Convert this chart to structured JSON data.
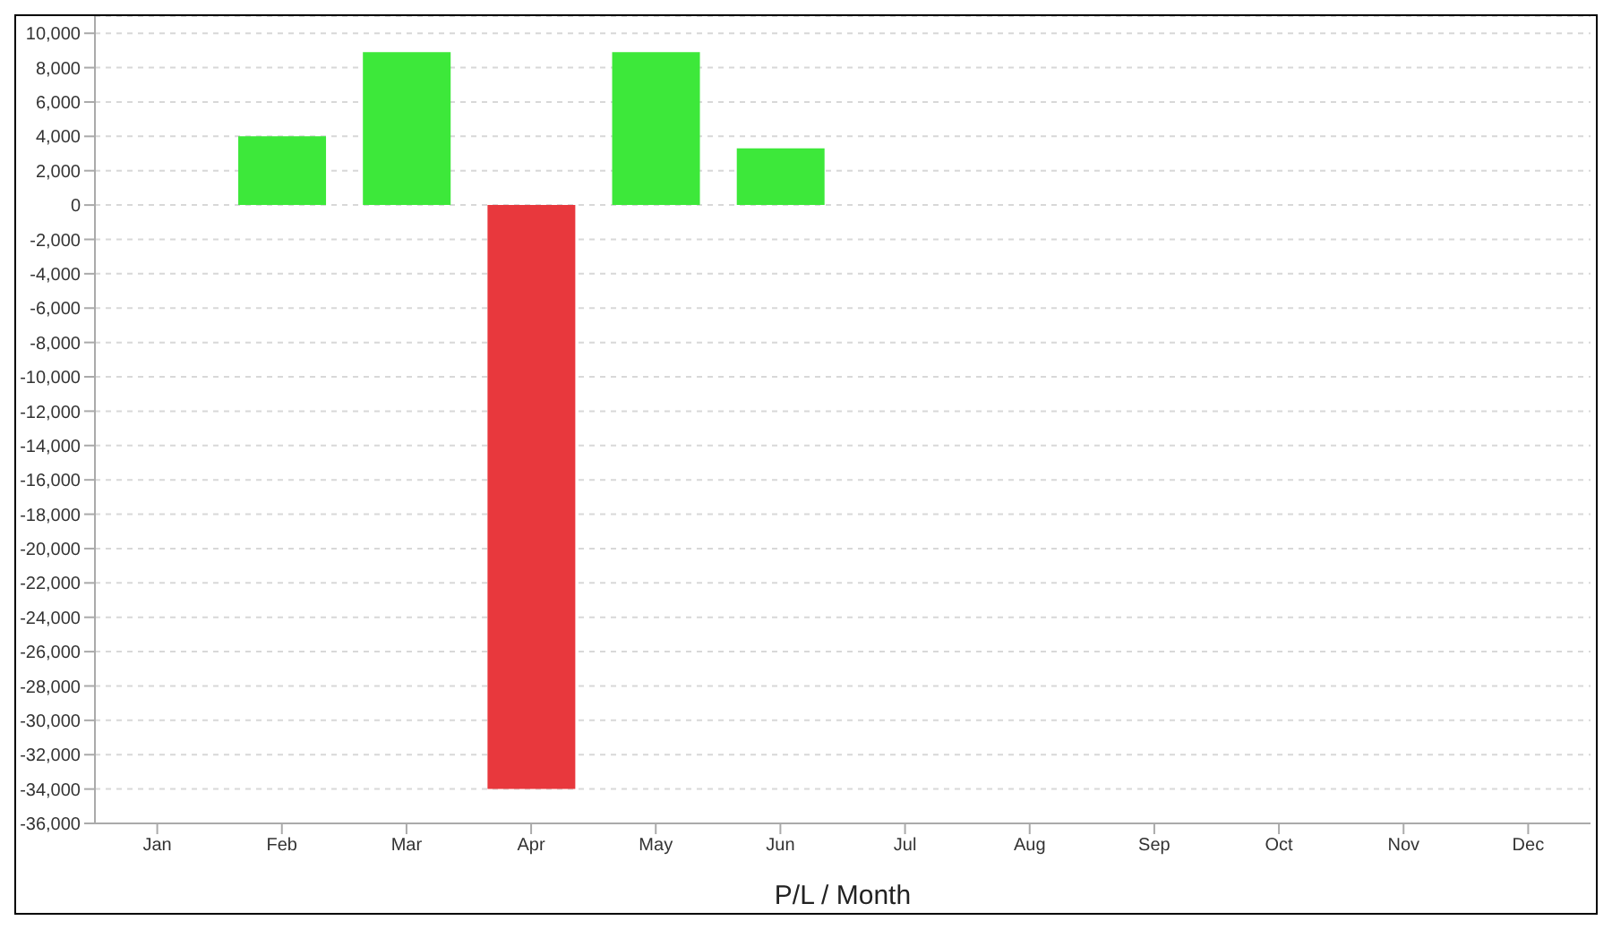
{
  "chart_data": {
    "type": "bar",
    "xlabel": "P/L / Month",
    "categories": [
      "Jan",
      "Feb",
      "Mar",
      "Apr",
      "May",
      "Jun",
      "Jul",
      "Aug",
      "Sep",
      "Oct",
      "Nov",
      "Dec"
    ],
    "values": [
      null,
      4000,
      8900,
      -34000,
      8900,
      3300,
      null,
      null,
      null,
      null,
      null,
      null
    ],
    "colors": [
      null,
      "#3de83a",
      "#3de83a",
      "#e8383d",
      "#3de83a",
      "#3de83a",
      null,
      null,
      null,
      null,
      null,
      null
    ],
    "ylim": [
      -36000,
      11000
    ],
    "yticks": [
      {
        "value": -36000,
        "label": "-36,000"
      },
      {
        "value": -34000,
        "label": "-34,000"
      },
      {
        "value": -32000,
        "label": "-32,000"
      },
      {
        "value": -30000,
        "label": "-30,000"
      },
      {
        "value": -28000,
        "label": "-28,000"
      },
      {
        "value": -26000,
        "label": "-26,000"
      },
      {
        "value": -24000,
        "label": "-24,000"
      },
      {
        "value": -22000,
        "label": "-22,000"
      },
      {
        "value": -20000,
        "label": "-20,000"
      },
      {
        "value": -18000,
        "label": "-18,000"
      },
      {
        "value": -16000,
        "label": "-16,000"
      },
      {
        "value": -14000,
        "label": "-14,000"
      },
      {
        "value": -12000,
        "label": "-12,000"
      },
      {
        "value": -10000,
        "label": "-10,000"
      },
      {
        "value": -8000,
        "label": "-8,000"
      },
      {
        "value": -6000,
        "label": "-6,000"
      },
      {
        "value": -4000,
        "label": "-4,000"
      },
      {
        "value": -2000,
        "label": "-2,000"
      },
      {
        "value": 0,
        "label": "0"
      },
      {
        "value": 2000,
        "label": "2,000"
      },
      {
        "value": 4000,
        "label": "4,000"
      },
      {
        "value": 6000,
        "label": "6,000"
      },
      {
        "value": 8000,
        "label": "8,000"
      },
      {
        "value": 10000,
        "label": "10,000"
      }
    ],
    "grid": "y"
  }
}
